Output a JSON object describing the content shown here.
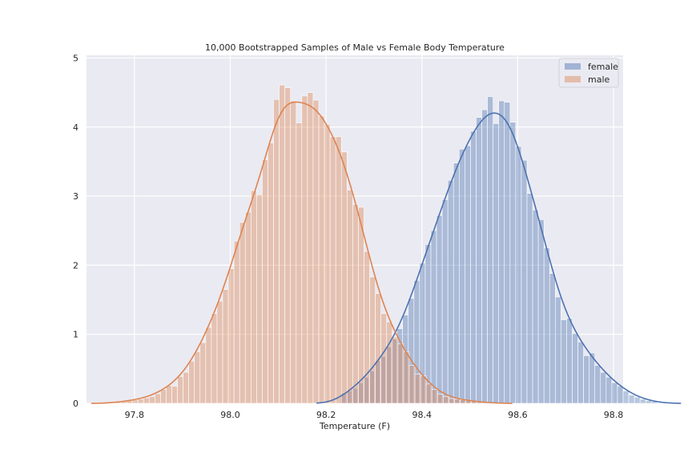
{
  "chart_data": {
    "type": "histogram",
    "title": "10,000 Bootstrapped Samples of Male vs Female Body Temperature",
    "xlabel": "Temperature (F)",
    "ylabel": "",
    "xlim": [
      97.7,
      98.82
    ],
    "ylim": [
      0,
      5.04
    ],
    "x_ticks": [
      97.8,
      98.0,
      98.2,
      98.4,
      98.6,
      98.8
    ],
    "y_ticks": [
      0,
      1,
      2,
      3,
      4,
      5
    ],
    "grid": true,
    "legend_position": "top-right",
    "series": [
      {
        "name": "female",
        "color": "#4c72b0",
        "bin_start": 98.23,
        "bin_width": 0.0118,
        "values": [
          0.15,
          0.18,
          0.22,
          0.3,
          0.38,
          0.47,
          0.62,
          0.68,
          0.82,
          0.93,
          1.08,
          1.28,
          1.52,
          1.78,
          2.03,
          2.3,
          2.5,
          2.72,
          2.95,
          3.23,
          3.48,
          3.68,
          3.73,
          3.94,
          4.14,
          4.25,
          4.44,
          4.05,
          4.38,
          4.36,
          4.07,
          3.72,
          3.52,
          3.04,
          2.8,
          2.66,
          2.25,
          1.88,
          1.54,
          1.21,
          1.23,
          1.01,
          0.89,
          0.69,
          0.73,
          0.55,
          0.45,
          0.38,
          0.3,
          0.25,
          0.18,
          0.12,
          0.09,
          0.06,
          0.04,
          0.03
        ]
      },
      {
        "name": "male",
        "color": "#dd8452",
        "bin_start": 97.76,
        "bin_width": 0.0118,
        "values": [
          0.02,
          0.03,
          0.04,
          0.05,
          0.06,
          0.08,
          0.1,
          0.14,
          0.2,
          0.26,
          0.25,
          0.39,
          0.45,
          0.61,
          0.75,
          0.88,
          1.1,
          1.3,
          1.48,
          1.65,
          1.95,
          2.35,
          2.62,
          2.77,
          3.08,
          3.02,
          3.53,
          3.77,
          4.4,
          4.61,
          4.57,
          4.38,
          4.06,
          4.45,
          4.5,
          4.39,
          4.16,
          4.04,
          3.86,
          3.86,
          3.64,
          3.09,
          2.88,
          2.84,
          2.2,
          1.83,
          1.59,
          1.3,
          1.18,
          0.96,
          0.86,
          0.75,
          0.55,
          0.42,
          0.4,
          0.28,
          0.2,
          0.13,
          0.1,
          0.07,
          0.06,
          0.05,
          0.04,
          0.03,
          0.02,
          0.02
        ]
      }
    ]
  }
}
